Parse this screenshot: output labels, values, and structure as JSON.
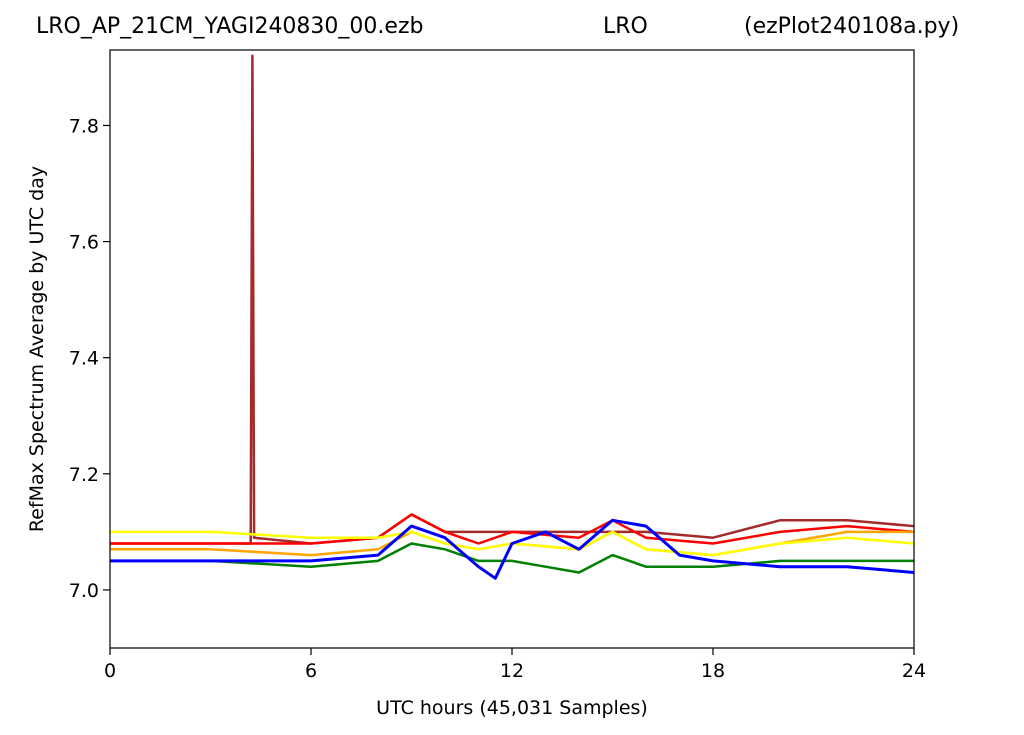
{
  "title": {
    "left": "LRO_AP_21CM_YAGI240830_00.ezb",
    "center": "LRO",
    "right": "(ezPlot240108a.py)"
  },
  "chart_data": {
    "type": "line",
    "xlabel": "UTC hours  (45,031 Samples)",
    "ylabel": "RefMax Spectrum Average by UTC day",
    "xlim": [
      0,
      24
    ],
    "ylim": [
      6.9,
      7.93
    ],
    "x_ticks": [
      "0",
      "6",
      "12",
      "18",
      "24"
    ],
    "y_ticks": [
      "7.0",
      "7.2",
      "7.4",
      "7.6",
      "7.8"
    ],
    "grid": false,
    "legend": "none",
    "series": [
      {
        "color": "#a52a2a",
        "x": [
          0,
          3,
          4.2,
          4.25,
          4.3,
          6,
          8,
          9,
          10,
          12,
          14,
          16,
          18,
          20,
          22,
          24
        ],
        "y": [
          7.08,
          7.08,
          7.08,
          7.92,
          7.09,
          7.08,
          7.09,
          7.13,
          7.1,
          7.1,
          7.1,
          7.1,
          7.09,
          7.12,
          7.12,
          7.11
        ]
      },
      {
        "color": "#ff0000",
        "x": [
          0,
          3,
          6,
          8,
          9,
          10,
          11,
          12,
          14,
          15,
          16,
          18,
          20,
          22,
          24
        ],
        "y": [
          7.08,
          7.08,
          7.08,
          7.09,
          7.13,
          7.1,
          7.08,
          7.1,
          7.09,
          7.12,
          7.09,
          7.08,
          7.1,
          7.11,
          7.1
        ]
      },
      {
        "color": "#ffa500",
        "x": [
          0,
          3,
          6,
          8,
          9,
          10,
          11,
          12,
          14,
          15,
          16,
          18,
          20,
          22,
          24
        ],
        "y": [
          7.07,
          7.07,
          7.06,
          7.07,
          7.1,
          7.08,
          7.07,
          7.08,
          7.07,
          7.1,
          7.07,
          7.06,
          7.08,
          7.1,
          7.1
        ]
      },
      {
        "color": "#ffff00",
        "x": [
          0,
          3,
          6,
          8,
          9,
          10,
          11,
          12,
          14,
          15,
          16,
          18,
          20,
          22,
          24
        ],
        "y": [
          7.1,
          7.1,
          7.09,
          7.09,
          7.1,
          7.08,
          7.07,
          7.08,
          7.07,
          7.1,
          7.07,
          7.06,
          7.08,
          7.09,
          7.08
        ]
      },
      {
        "color": "#008000",
        "x": [
          0,
          3,
          6,
          8,
          9,
          10,
          11,
          12,
          13,
          14,
          15,
          16,
          18,
          20,
          22,
          24
        ],
        "y": [
          7.05,
          7.05,
          7.04,
          7.05,
          7.08,
          7.07,
          7.05,
          7.05,
          7.04,
          7.03,
          7.06,
          7.04,
          7.04,
          7.05,
          7.05,
          7.05
        ]
      },
      {
        "color": "#0000ff",
        "x": [
          0,
          3,
          6,
          8,
          9,
          10,
          11,
          11.5,
          12,
          13,
          14,
          15,
          16,
          17,
          18,
          20,
          22,
          24
        ],
        "y": [
          7.05,
          7.05,
          7.05,
          7.06,
          7.11,
          7.09,
          7.04,
          7.02,
          7.08,
          7.1,
          7.07,
          7.12,
          7.11,
          7.06,
          7.05,
          7.04,
          7.04,
          7.03
        ]
      }
    ]
  }
}
